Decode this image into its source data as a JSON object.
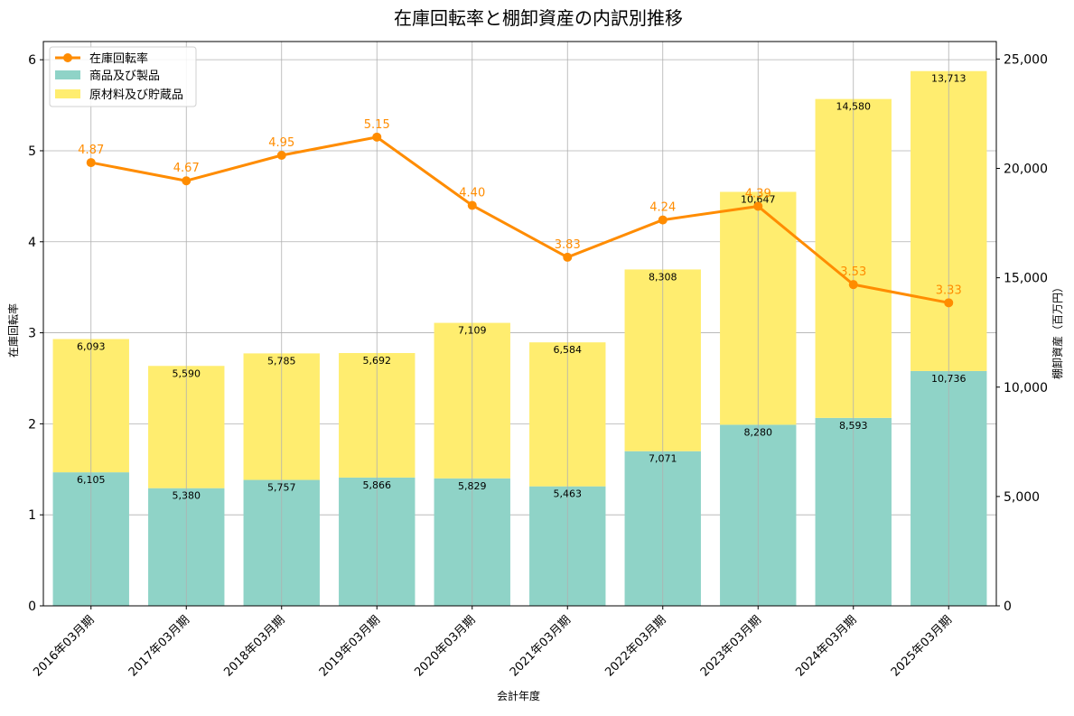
{
  "chart_data": {
    "type": "bar",
    "title": "在庫回転率と棚卸資産の内訳別推移",
    "xlabel": "会計年度",
    "ylabel_left": "在庫回転率",
    "ylabel_right": "棚卸資産（百万円）",
    "categories": [
      "2016年03月期",
      "2017年03月期",
      "2018年03月期",
      "2019年03月期",
      "2020年03月期",
      "2021年03月期",
      "2022年03月期",
      "2023年03月期",
      "2024年03月期",
      "2025年03月期"
    ],
    "bar_series": [
      {
        "name": "商品及び製品",
        "color": "#8fd3c7",
        "values": [
          6105,
          5380,
          5757,
          5866,
          5829,
          5463,
          7071,
          8280,
          8593,
          10736
        ]
      },
      {
        "name": "原材料及び貯蔵品",
        "color": "#ffed6f",
        "values": [
          6093,
          5590,
          5785,
          5692,
          7109,
          6584,
          8308,
          10647,
          14580,
          13713
        ]
      }
    ],
    "bar_label_texts": [
      [
        "6,105",
        "5,380",
        "5,757",
        "5,866",
        "5,829",
        "5,463",
        "7,071",
        "8,280",
        "8,593",
        "10,736"
      ],
      [
        "6,093",
        "5,590",
        "5,785",
        "5,692",
        "7,109",
        "6,584",
        "8,308",
        "10,647",
        "14,580",
        "13,713"
      ]
    ],
    "line_series": {
      "name": "在庫回転率",
      "color": "#ff8c00",
      "values": [
        4.87,
        4.67,
        4.95,
        5.15,
        4.4,
        3.83,
        4.24,
        4.39,
        3.53,
        3.33
      ],
      "labels": [
        "4.87",
        "4.67",
        "4.95",
        "5.15",
        "4.40",
        "3.83",
        "4.24",
        "4.39",
        "3.53",
        "3.33"
      ]
    },
    "y_left": {
      "range": [
        0,
        6.2
      ],
      "ticks": [
        0,
        1,
        2,
        3,
        4,
        5,
        6
      ],
      "tick_labels": [
        "0",
        "1",
        "2",
        "3",
        "4",
        "5",
        "6"
      ]
    },
    "y_right": {
      "range": [
        0,
        25800
      ],
      "ticks": [
        0,
        5000,
        10000,
        15000,
        20000,
        25000
      ],
      "tick_labels": [
        "0",
        "5,000",
        "10,000",
        "15,000",
        "20,000",
        "25,000"
      ]
    },
    "grid": true,
    "legend_position": "top-left"
  }
}
